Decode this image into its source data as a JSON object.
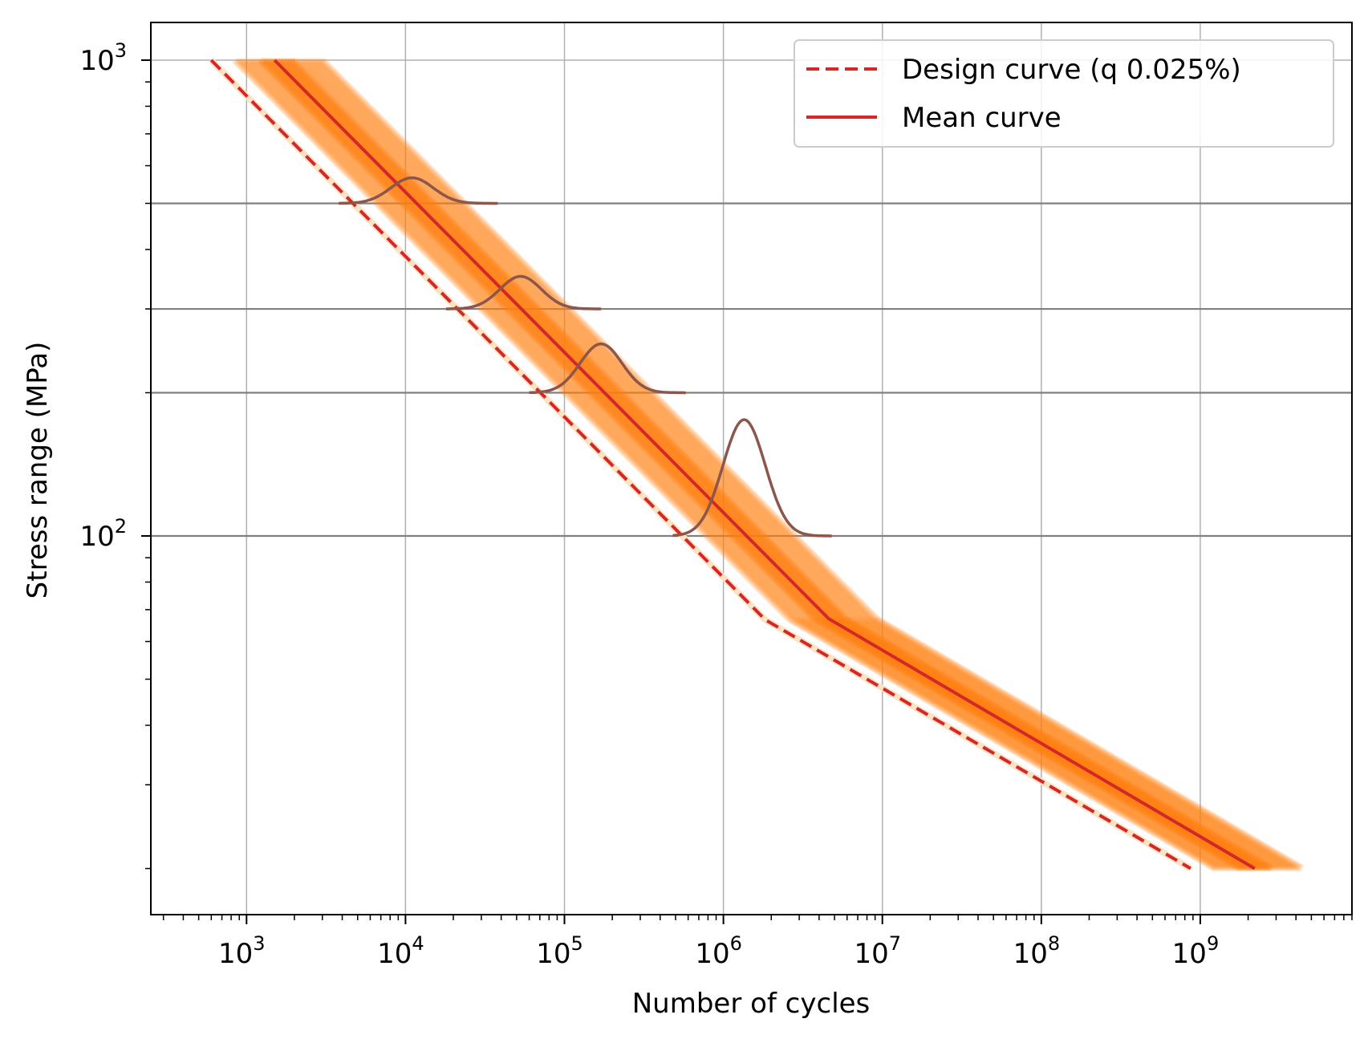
{
  "chart_data": {
    "type": "line",
    "xscale": "log",
    "yscale": "log",
    "xlabel": "Number of cycles",
    "ylabel": "Stress range (MPa)",
    "xlim": [
      250,
      9000000000
    ],
    "ylim": [
      16,
      1200
    ],
    "grid": true,
    "legend_position": "top-right",
    "x_ticks": [
      {
        "value": 1000,
        "base": "10",
        "exp": "3"
      },
      {
        "value": 10000,
        "base": "10",
        "exp": "4"
      },
      {
        "value": 100000,
        "base": "10",
        "exp": "5"
      },
      {
        "value": 1000000,
        "base": "10",
        "exp": "6"
      },
      {
        "value": 10000000,
        "base": "10",
        "exp": "7"
      },
      {
        "value": 100000000,
        "base": "10",
        "exp": "8"
      },
      {
        "value": 1000000000,
        "base": "10",
        "exp": "9"
      }
    ],
    "y_ticks": [
      {
        "value": 100,
        "base": "10",
        "exp": "2"
      },
      {
        "value": 1000,
        "base": "10",
        "exp": "3"
      }
    ],
    "stress_levels": [
      500,
      300,
      200,
      100
    ],
    "colors": {
      "design": "#d62728",
      "mean": "#d62728",
      "samples": "#ff7f0e",
      "distribution": "#8c564b",
      "stress_level_lines": "#808080",
      "grid": "#b0b0b0"
    },
    "series": [
      {
        "name": "Design curve (q 0.025%)",
        "style": "dashed",
        "x": [
          600,
          1830000,
          870000000
        ],
        "y": [
          1000,
          66.7,
          20
        ]
      },
      {
        "name": "Mean curve",
        "style": "solid",
        "x": [
          1500,
          4600000,
          2200000000
        ],
        "y": [
          1000,
          67,
          20
        ]
      }
    ],
    "sample_band": {
      "description_visible": false,
      "lower_offset_decades": -0.25,
      "upper_offset_decades": 0.3,
      "count": 40
    },
    "distributions": [
      {
        "stress": 500,
        "x_range": [
          3800,
          38000
        ],
        "peak_x": 11000,
        "peak_height_frac": 0.22
      },
      {
        "stress": 300,
        "x_range": [
          18000,
          170000
        ],
        "peak_x": 53000,
        "peak_height_frac": 0.28
      },
      {
        "stress": 200,
        "x_range": [
          60000,
          580000
        ],
        "peak_x": 170000,
        "peak_height_frac": 0.42
      },
      {
        "stress": 100,
        "x_range": [
          480000,
          4800000
        ],
        "peak_x": 1350000,
        "peak_height_frac": 1.0
      }
    ]
  }
}
